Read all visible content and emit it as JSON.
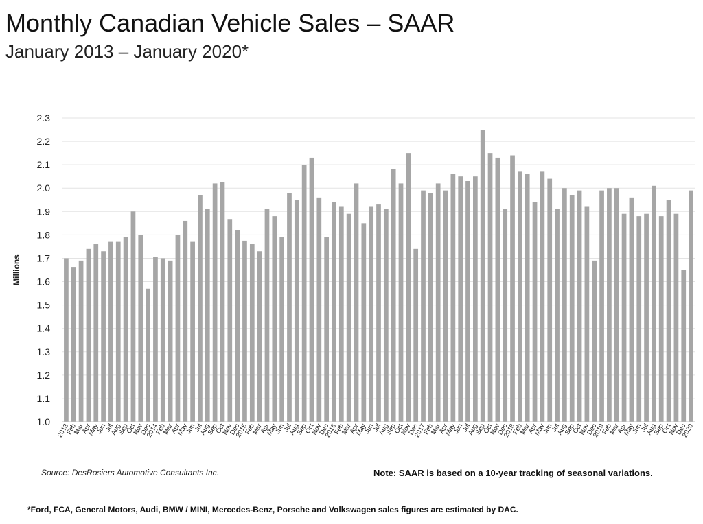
{
  "title": "Monthly Canadian Vehicle Sales – SAAR",
  "subtitle": "January 2013 – January 2020*",
  "source": "Source: DesRosiers Automotive Consultants Inc.",
  "note": "Note:  SAAR is based on a 10-year tracking of seasonal variations.",
  "footnote": "*Ford, FCA, General Motors, Audi, BMW / MINI, Mercedes-Benz, Porsche and Volkswagen sales figures are estimated by DAC.",
  "colors": {
    "bar": "#a6a6a6",
    "grid": "#e3e3e3",
    "axis": "#bfbfbf",
    "text": "#222222"
  },
  "chart_data": {
    "type": "bar",
    "title": "Monthly Canadian Vehicle Sales – SAAR",
    "xlabel": "",
    "ylabel": "Millions",
    "ylim": [
      1.0,
      2.3
    ],
    "yticks": [
      "1.0",
      "1.1",
      "1.2",
      "1.3",
      "1.4",
      "1.5",
      "1.6",
      "1.7",
      "1.8",
      "1.9",
      "2.0",
      "2.1",
      "2.2",
      "2.3"
    ],
    "grid": true,
    "categories": [
      "2013",
      "Feb",
      "Mar",
      "Apr",
      "May",
      "Jun",
      "Jul",
      "Aug",
      "Sep",
      "Oct",
      "Nov",
      "Dec",
      "2014",
      "Feb",
      "Mar",
      "Apr",
      "May",
      "Jun",
      "Jul",
      "Aug",
      "Sep",
      "Oct",
      "Nov",
      "Dec",
      "2015",
      "Feb",
      "Mar",
      "Apr",
      "May",
      "Jun",
      "Jul",
      "Aug",
      "Sep",
      "Oct",
      "Nov",
      "Dec",
      "2016",
      "Feb",
      "Mar",
      "Apr",
      "May",
      "Jun",
      "Jul",
      "Aug",
      "Sep",
      "Oct",
      "Nov",
      "Dec",
      "2017",
      "Feb",
      "Mar",
      "Apr",
      "May",
      "Jun",
      "Jul",
      "Aug",
      "Sep",
      "Oct",
      "Nov",
      "Dec",
      "2018",
      "Feb",
      "Mar",
      "Apr",
      "May",
      "Jun",
      "Jul",
      "Aug",
      "Sep",
      "Oct",
      "Nov",
      "Dec",
      "2019",
      "Feb",
      "Mar",
      "Apr",
      "May",
      "Jun",
      "Jul",
      "Aug",
      "Sep",
      "Oct",
      "Nov",
      "Dec",
      "2020"
    ],
    "values": [
      1.7,
      1.66,
      1.69,
      1.74,
      1.76,
      1.73,
      1.77,
      1.77,
      1.79,
      1.9,
      1.8,
      1.57,
      1.705,
      1.7,
      1.69,
      1.8,
      1.86,
      1.77,
      1.97,
      1.91,
      2.02,
      2.025,
      1.865,
      1.82,
      1.775,
      1.76,
      1.73,
      1.91,
      1.88,
      1.79,
      1.98,
      1.95,
      2.1,
      2.13,
      1.96,
      1.79,
      1.94,
      1.92,
      1.89,
      2.02,
      1.85,
      1.92,
      1.93,
      1.91,
      2.08,
      2.02,
      2.15,
      1.74,
      1.99,
      1.98,
      2.02,
      1.99,
      2.06,
      2.05,
      2.03,
      2.05,
      2.25,
      2.15,
      2.13,
      1.91,
      2.14,
      2.07,
      2.06,
      1.94,
      2.07,
      2.04,
      1.91,
      2.0,
      1.97,
      1.99,
      1.92,
      1.69,
      1.99,
      2.0,
      2.0,
      1.89,
      1.96,
      1.88,
      1.89,
      2.01,
      1.88,
      1.95,
      1.89,
      1.65,
      1.99
    ]
  }
}
